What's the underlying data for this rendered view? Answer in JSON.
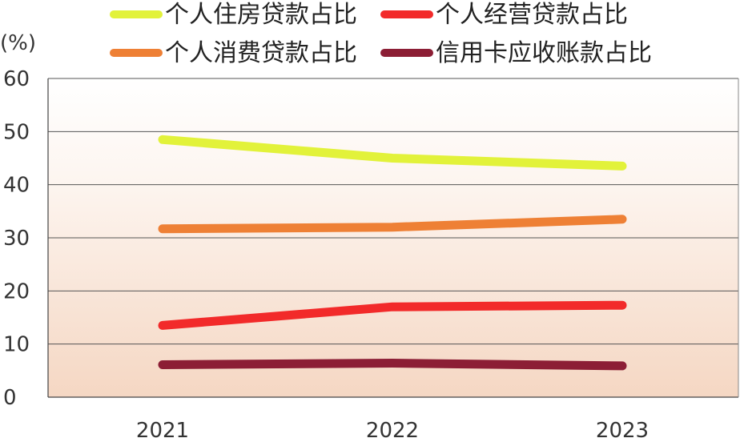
{
  "chart_data": {
    "type": "line",
    "ylabel": "(%)",
    "xlabel": "",
    "ylim": [
      0,
      60
    ],
    "yticks": [
      "0",
      "10",
      "20",
      "30",
      "40",
      "50",
      "60"
    ],
    "categories": [
      "2021",
      "2022",
      "2023"
    ],
    "grid": true,
    "legend_position": "top",
    "series": [
      {
        "name": "个人住房贷款占比",
        "color": "#e2f23a",
        "values": [
          48.5,
          45.0,
          43.5
        ]
      },
      {
        "name": "个人经营贷款占比",
        "color": "#f22a2a",
        "values": [
          13.5,
          17.0,
          17.3
        ]
      },
      {
        "name": "个人消费贷款占比",
        "color": "#ee8035",
        "values": [
          31.7,
          32.0,
          33.5
        ]
      },
      {
        "name": "信用卡应收账款占比",
        "color": "#8c1e35",
        "values": [
          6.1,
          6.4,
          5.9
        ]
      }
    ]
  }
}
